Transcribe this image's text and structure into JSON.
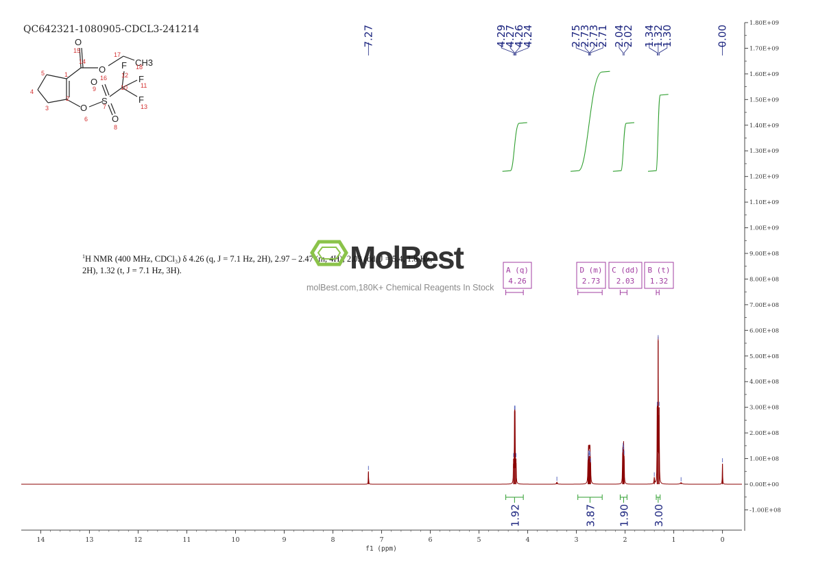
{
  "sample_id": "QC642321-1080905-CDCL3-241214",
  "nmr_description": {
    "nucleus_sup": "1",
    "line1": "H NMR (400 MHz, CDCl₃) δ 4.26 (q, J = 7.1 Hz, 2H), 2.97 – 2.47 (m, 4H), 2.03 (dd, J = 5.4, 1.8 Hz,",
    "line2": "2H), 1.32 (t, J = 7.1 Hz, 3H)."
  },
  "watermark": {
    "brand": "MolBest",
    "url_text": "molBest.com,180K+ Chemical Reagents In Stock",
    "color": "#8bc34a"
  },
  "molecule": {
    "atom_labels": [
      "O",
      "O",
      "CH3",
      "F",
      "F",
      "F",
      "O",
      "O",
      "S",
      "O",
      "O"
    ],
    "atom_numbers": [
      "15",
      "14",
      "17",
      "18",
      "16",
      "12",
      "10",
      "11",
      "13",
      "9",
      "7",
      "8",
      "6",
      "5",
      "1",
      "2",
      "4",
      "3"
    ]
  },
  "chart_data": {
    "type": "line",
    "xlabel": "f1 (ppm)",
    "ylabel": "",
    "xlim": [
      14.4,
      -0.4
    ],
    "ylim": [
      -175000000.0,
      1800000000.0
    ],
    "x_ticks": [
      14,
      13,
      12,
      11,
      10,
      9,
      8,
      7,
      6,
      5,
      4,
      3,
      2,
      1,
      0
    ],
    "y_ticks": [
      1800000000.0,
      1700000000.0,
      1600000000.0,
      1500000000.0,
      1400000000.0,
      1300000000.0,
      1200000000.0,
      1100000000.0,
      1000000000.0,
      900000000.0,
      800000000.0,
      700000000.0,
      600000000.0,
      500000000.0,
      400000000.0,
      300000000.0,
      200000000.0,
      100000000.0,
      0,
      -100000000.0
    ],
    "y_tick_labels": [
      "1.80E+09",
      "1.70E+09",
      "1.60E+09",
      "1.50E+09",
      "1.40E+09",
      "1.30E+09",
      "1.20E+09",
      "1.10E+09",
      "1.00E+09",
      "9.00E+08",
      "8.00E+08",
      "7.00E+08",
      "6.00E+08",
      "5.00E+08",
      "4.00E+08",
      "3.00E+08",
      "2.00E+08",
      "1.00E+08",
      "0.00E+00",
      "-1.00E+08"
    ],
    "peaks": [
      {
        "ppm": 7.27,
        "height": 50000000.0,
        "width": 0.004
      },
      {
        "ppm": 4.29,
        "height": 100000000.0,
        "width": 0.004
      },
      {
        "ppm": 4.27,
        "height": 285000000.0,
        "width": 0.004
      },
      {
        "ppm": 4.26,
        "height": 285000000.0,
        "width": 0.004
      },
      {
        "ppm": 4.24,
        "height": 100000000.0,
        "width": 0.004
      },
      {
        "ppm": 2.76,
        "height": 90000000.0,
        "width": 0.005
      },
      {
        "ppm": 2.75,
        "height": 110000000.0,
        "width": 0.005
      },
      {
        "ppm": 2.74,
        "height": 100000000.0,
        "width": 0.005
      },
      {
        "ppm": 2.73,
        "height": 110000000.0,
        "width": 0.005
      },
      {
        "ppm": 2.72,
        "height": 105000000.0,
        "width": 0.005
      },
      {
        "ppm": 2.71,
        "height": 80000000.0,
        "width": 0.005
      },
      {
        "ppm": 2.05,
        "height": 120000000.0,
        "width": 0.004
      },
      {
        "ppm": 2.04,
        "height": 140000000.0,
        "width": 0.004
      },
      {
        "ppm": 2.03,
        "height": 130000000.0,
        "width": 0.004
      },
      {
        "ppm": 2.02,
        "height": 110000000.0,
        "width": 0.004
      },
      {
        "ppm": 1.34,
        "height": 300000000.0,
        "width": 0.004
      },
      {
        "ppm": 1.32,
        "height": 560000000.0,
        "width": 0.004
      },
      {
        "ppm": 1.3,
        "height": 300000000.0,
        "width": 0.004
      },
      {
        "ppm": 1.4,
        "height": 25000000.0,
        "width": 0.006
      },
      {
        "ppm": 3.4,
        "height": 8000000.0,
        "width": 0.01
      },
      {
        "ppm": 0.85,
        "height": 6000000.0,
        "width": 0.02
      },
      {
        "ppm": 0.0,
        "height": 80000000.0,
        "width": 0.004
      }
    ],
    "peak_labels": [
      {
        "ppm": 7.27,
        "label": "7.27",
        "group": 0
      },
      {
        "ppm": 4.29,
        "label": "4.29",
        "group": 1
      },
      {
        "ppm": 4.27,
        "label": "4.27",
        "group": 1
      },
      {
        "ppm": 4.26,
        "label": "4.26",
        "group": 1
      },
      {
        "ppm": 4.24,
        "label": "4.24",
        "group": 1
      },
      {
        "ppm": 2.75,
        "label": "2.75",
        "group": 2
      },
      {
        "ppm": 2.73,
        "label": "2.73",
        "group": 2
      },
      {
        "ppm": 2.73,
        "label": "2.73",
        "group": 2
      },
      {
        "ppm": 2.71,
        "label": "2.71",
        "group": 2
      },
      {
        "ppm": 2.04,
        "label": "2.04",
        "group": 3
      },
      {
        "ppm": 2.02,
        "label": "2.02",
        "group": 3
      },
      {
        "ppm": 1.34,
        "label": "1.34",
        "group": 4
      },
      {
        "ppm": 1.32,
        "label": "1.32",
        "group": 4
      },
      {
        "ppm": 1.3,
        "label": "1.30",
        "group": 4
      },
      {
        "ppm": 0.0,
        "label": "0.00",
        "group": 5
      }
    ],
    "integral_curves": [
      {
        "from": 4.35,
        "to": 4.18,
        "start": 1220000000.0,
        "end": 1410000000.0
      },
      {
        "from": 2.95,
        "to": 2.48,
        "start": 1220000000.0,
        "end": 1610000000.0
      },
      {
        "from": 2.08,
        "to": 1.98,
        "start": 1220000000.0,
        "end": 1410000000.0
      },
      {
        "from": 1.36,
        "to": 1.28,
        "start": 1220000000.0,
        "end": 1520000000.0
      }
    ],
    "integrals": [
      {
        "from": 4.45,
        "to": 4.09,
        "value": "1.92"
      },
      {
        "from": 2.97,
        "to": 2.47,
        "value": "3.87"
      },
      {
        "from": 2.1,
        "to": 1.96,
        "value": "1.90"
      },
      {
        "from": 1.36,
        "to": 1.28,
        "value": "3.00"
      }
    ],
    "multiplets": [
      {
        "letter": "A (q)",
        "shift": "4.26",
        "from": 4.45,
        "to": 4.09
      },
      {
        "letter": "D (m)",
        "shift": "2.73",
        "from": 2.97,
        "to": 2.47
      },
      {
        "letter": "C (dd)",
        "shift": "2.03",
        "from": 2.1,
        "to": 1.96
      },
      {
        "letter": "B (t)",
        "shift": "1.32",
        "from": 1.36,
        "to": 1.3
      }
    ],
    "colors": {
      "spectrum": "#8b0000",
      "integral": "#2e9e2e",
      "peak_label": "#1a237e",
      "multiplet_box": "#a03ca0",
      "axis": "#444444"
    }
  }
}
